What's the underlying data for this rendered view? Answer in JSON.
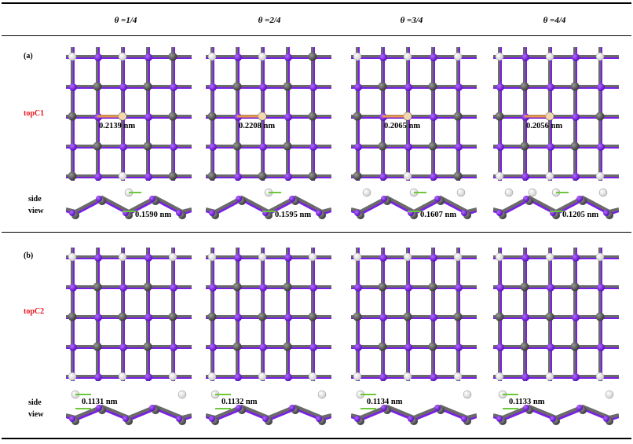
{
  "columns": [
    {
      "coverage": "θ =1/4"
    },
    {
      "coverage": "θ =2/4"
    },
    {
      "coverage": "θ =3/4"
    },
    {
      "coverage": "θ =4/4"
    }
  ],
  "panels": [
    {
      "tag": "(a)",
      "config": "topC1",
      "side_label_line1": "side",
      "side_label_line2": "view",
      "top_distances": [
        "0.2139 nm",
        "0.2208 nm",
        "0.2065 nm",
        "0.2056 nm"
      ],
      "side_distances": [
        "0.1590 nm",
        "0.1595 nm",
        "0.1607 nm",
        "0.1205 nm"
      ]
    },
    {
      "tag": "(b)",
      "config": "topC2",
      "side_label_line1": "side",
      "side_label_line2": "view",
      "side_distances": [
        "0.1131 nm",
        "0.1132 nm",
        "0.1134 nm",
        "0.1133 nm"
      ]
    }
  ],
  "colors": {
    "iodine": "#7a1fe6",
    "carbon": "#5e5e5e",
    "hydrogen": "#f4f4f4",
    "bond_orange": "#e89a4a",
    "bond_green": "#6cc83a",
    "label_red": "#e8131c"
  }
}
